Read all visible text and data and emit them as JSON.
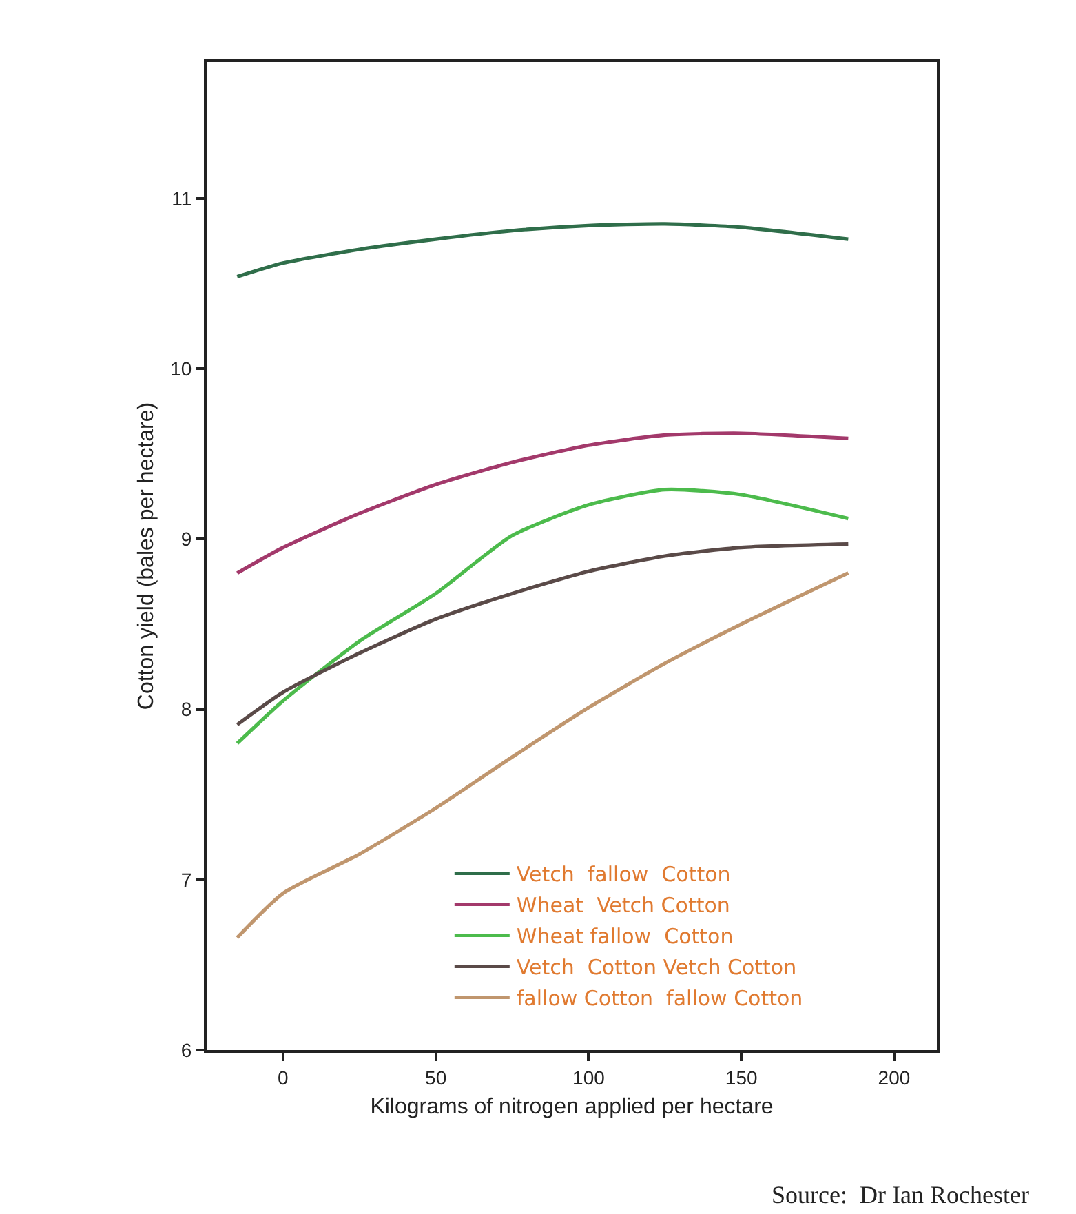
{
  "chart_data": {
    "type": "line",
    "xlabel": "Kilograms of nitrogen applied per hectare",
    "ylabel": "Cotton yield (bales per hectare)",
    "x": [
      -15,
      0,
      25,
      50,
      75,
      100,
      125,
      150,
      185
    ],
    "series": [
      {
        "name": "Vetch  fallow  Cotton",
        "color": "#2f6e4a",
        "values": [
          10.54,
          10.62,
          10.7,
          10.76,
          10.81,
          10.84,
          10.85,
          10.83,
          10.76
        ]
      },
      {
        "name": "Wheat  Vetch Cotton",
        "color": "#a3396b",
        "values": [
          8.8,
          8.95,
          9.15,
          9.32,
          9.45,
          9.55,
          9.61,
          9.62,
          9.59
        ]
      },
      {
        "name": "Wheat fallow  Cotton",
        "color": "#4cbb4c",
        "values": [
          7.8,
          8.05,
          8.4,
          8.68,
          9.02,
          9.2,
          9.29,
          9.26,
          9.12
        ]
      },
      {
        "name": "Vetch  Cotton Vetch Cotton",
        "color": "#5a4a48",
        "values": [
          7.91,
          8.1,
          8.33,
          8.53,
          8.68,
          8.81,
          8.9,
          8.95,
          8.97
        ]
      },
      {
        "name": "fallow Cotton  fallow Cotton",
        "color": "#c0966e",
        "values": [
          6.66,
          6.92,
          7.15,
          7.42,
          7.72,
          8.01,
          8.27,
          8.5,
          8.8
        ]
      }
    ],
    "xlim": [
      -25,
      214
    ],
    "xticks": [
      0,
      50,
      100,
      150,
      200
    ],
    "ylim": [
      6,
      11.8
    ],
    "yticks": [
      6,
      7,
      8,
      9,
      10,
      11
    ],
    "grid": false,
    "legend": "bottom",
    "marker": "none",
    "line_style": "solid",
    "annotations": [
      "Source:  Dr Ian Rochester"
    ]
  }
}
